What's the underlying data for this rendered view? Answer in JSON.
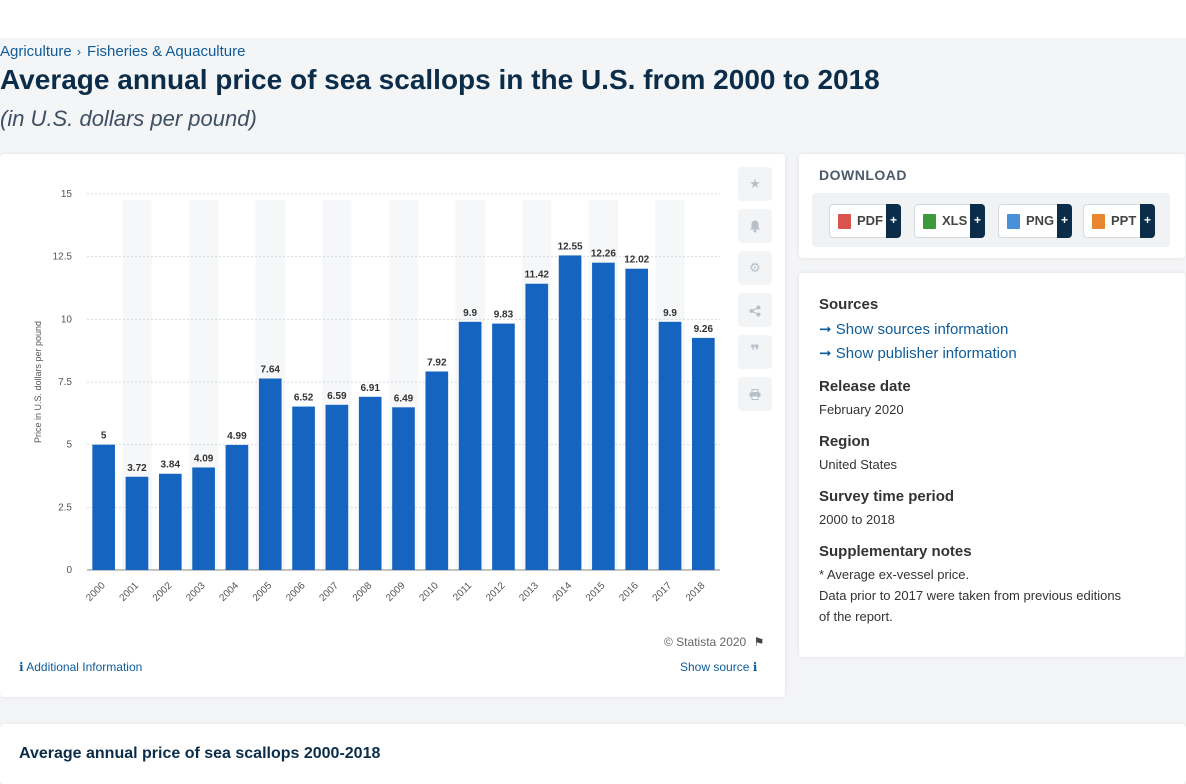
{
  "breadcrumb": [
    "Agriculture",
    "Fisheries & Aquaculture"
  ],
  "breadcrumb_separator": "›",
  "title": "Average annual price of sea scallops in the U.S. from 2000 to 2018",
  "subtitle": "(in U.S. dollars per pound)",
  "chart_data": {
    "type": "bar",
    "categories": [
      "2000",
      "2001",
      "2002",
      "2003",
      "2004",
      "2005",
      "2006",
      "2007",
      "2008",
      "2009",
      "2010",
      "2011",
      "2012",
      "2013",
      "2014",
      "2015",
      "2016",
      "2017",
      "2018"
    ],
    "values": [
      5,
      3.72,
      3.84,
      4.09,
      4.99,
      7.64,
      6.52,
      6.59,
      6.91,
      6.49,
      7.92,
      9.9,
      9.83,
      11.42,
      12.55,
      12.26,
      12.02,
      9.9,
      9.26
    ],
    "data_labels": [
      "5",
      "3.72",
      "3.84",
      "4.09",
      "4.99",
      "7.64",
      "6.52",
      "6.59",
      "6.91",
      "6.49",
      "7.92",
      "9.9",
      "9.83",
      "11.42",
      "12.55",
      "12.26",
      "12.02",
      "9.9",
      "9.26"
    ],
    "ylabel": "Price in U.S. dollars per pound",
    "yticks": [
      "0",
      "2.5",
      "5",
      "7.5",
      "10",
      "12.5",
      "15"
    ],
    "ylim": [
      0,
      15
    ],
    "grid": true,
    "bar_color": "#1565c0"
  },
  "chart_footer": {
    "copyright": "© Statista 2020",
    "additional_info": "Additional Information",
    "show_source": "Show source"
  },
  "tools": [
    "star-icon",
    "bell-icon",
    "gear-icon",
    "share-icon",
    "quote-icon",
    "print-icon"
  ],
  "download": {
    "heading": "DOWNLOAD",
    "buttons": [
      {
        "label": "PDF",
        "color": "#d9534f"
      },
      {
        "label": "XLS",
        "color": "#3c9a3c"
      },
      {
        "label": "PNG",
        "color": "#4a90d9"
      },
      {
        "label": "PPT",
        "color": "#e8862e"
      }
    ],
    "plus": "+"
  },
  "info": {
    "sources_heading": "Sources",
    "show_sources": "Show sources information",
    "show_publisher": "Show publisher information",
    "release_heading": "Release date",
    "release_value": "February 2020",
    "region_heading": "Region",
    "region_value": "United States",
    "survey_heading": "Survey time period",
    "survey_value": "2000 to 2018",
    "notes_heading": "Supplementary notes",
    "notes_line1": "* Average ex-vessel price.",
    "notes_line2": "Data prior to 2017 were taken from previous editions",
    "notes_line3": "of the report."
  },
  "table_title": "Average annual price of sea scallops 2000-2018"
}
